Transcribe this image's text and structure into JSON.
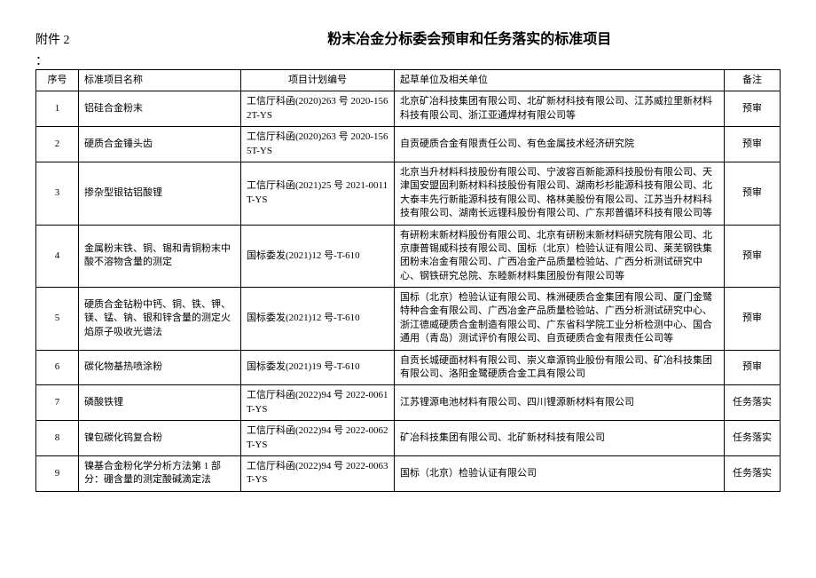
{
  "header": {
    "attachment": "附件 2",
    "colon": "：",
    "title": "粉末冶金分标委会预审和任务落实的标准项目"
  },
  "table": {
    "columns": [
      "序号",
      "标准项目名称",
      "项目计划编号",
      "起草单位及相关单位",
      "备注"
    ],
    "rows": [
      {
        "seq": "1",
        "name": "铝硅合金粉末",
        "plan": "工信厅科函(2020)263 号 2020-1562T-YS",
        "org": "北京矿冶科技集团有限公司、北矿新材科技有限公司、江苏威拉里新材料科技有限公司、浙江亚通焊材有限公司等",
        "note": "预审"
      },
      {
        "seq": "2",
        "name": "硬质合金锤头齿",
        "plan": "工信厅科函(2020)263 号 2020-1565T-YS",
        "org": "自贡硬质合金有限责任公司、有色金属技术经济研究院",
        "note": "预审"
      },
      {
        "seq": "3",
        "name": "掺杂型银钴铝酸锂",
        "plan": "工信厅科函(2021)25 号 2021-0011T-YS",
        "org": "北京当升材料科技股份有限公司、宁波容百新能源科技股份有限公司、天津国安盟固利新材料科技股份有限公司、湖南杉杉能源科技有限公司、北大泰丰先行新能源科技有限公司、格林美股份有限公司、江苏当升材料科技有限公司、湖南长远锂科股份有限公司、广东邦普循环科技有限公司等",
        "note": "预审"
      },
      {
        "seq": "4",
        "name": "金属粉末铁、铜、锡和青铜粉末中酸不溶物含量的测定",
        "plan": "国标委发(2021)12 号-T-610",
        "org": "有研粉末新材料股份有限公司、北京有研粉末新材料研究院有限公司、北京康普锡威科技有限公司、国标（北京）检验认证有限公司、莱芜钢铁集团粉末冶金有限公司、广西冶金产品质量检验站、广西分析测试研究中心、钢铁研究总院、东睦新材料集团股份有限公司等",
        "note": "预审"
      },
      {
        "seq": "5",
        "name": "硬质合金钻粉中钙、铜、铁、钾、镁、锰、钠、银和锌含量的测定火焰原子吸收光谱法",
        "plan": "国标委发(2021)12 号-T-610",
        "org": "国标（北京）检验认证有限公司、株洲硬质合金集团有限公司、厦门金鹭特种合金有限公司、广西冶金产品质量检验站、广西分析测试研究中心、浙江德威硬质合金制造有限公司、广东省科学院工业分析检测中心、国合通用（青岛）测试评价有限公司、自贡硬质合金有限责任公司等",
        "note": "预审"
      },
      {
        "seq": "6",
        "name": "碳化物基热喷涂粉",
        "plan": "国标委发(2021)19 号-T-610",
        "org": "自贡长城硬面材料有限公司、崇义章源钨业股份有限公司、矿冶科技集团有限公司、洛阳金鹭硬质合金工具有限公司",
        "note": "预审"
      },
      {
        "seq": "7",
        "name": "磷酸铁锂",
        "plan": "工信厅科函(2022)94 号 2022-0061T-YS",
        "org": "江苏锂源电池材料有限公司、四川锂源新材料有限公司",
        "note": "任务落实"
      },
      {
        "seq": "8",
        "name": "镍包碳化钨复合粉",
        "plan": "工信厅科函(2022)94 号 2022-0062T-YS",
        "org": "矿冶科技集团有限公司、北矿新材科技有限公司",
        "note": "任务落实"
      },
      {
        "seq": "9",
        "name": "镍基合金粉化学分析方法第 1 部分：硼含量的测定酸碱滴定法",
        "plan": "工信厅科函(2022)94 号 2022-0063T-YS",
        "org": "国标（北京）检验认证有限公司",
        "note": "任务落实"
      }
    ]
  }
}
